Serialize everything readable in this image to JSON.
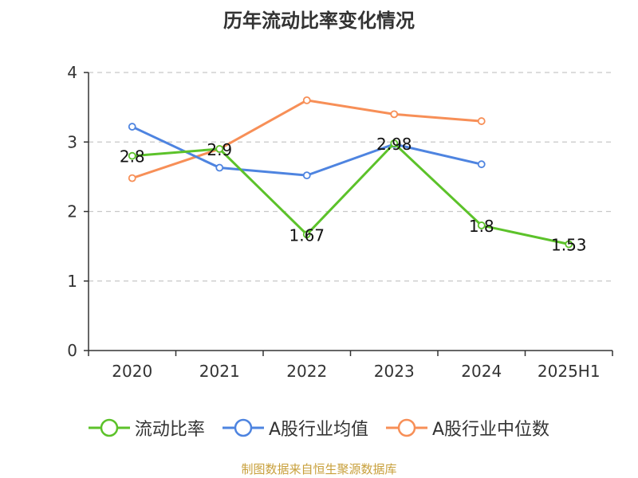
{
  "title": "历年流动比率变化情况",
  "source": "制图数据来自恒生聚源数据库",
  "colors": {
    "series_current_ratio": "#5cc22a",
    "series_industry_mean": "#4e84e0",
    "series_industry_median": "#f78f57",
    "grid": "#c8c8c8",
    "axis": "#333333",
    "source_text": "#c8a03c"
  },
  "chart_data": {
    "type": "line",
    "title": "历年流动比率变化情况",
    "categories": [
      "2020",
      "2021",
      "2022",
      "2023",
      "2024",
      "2025H1"
    ],
    "ylim": [
      0,
      4
    ],
    "yticks": [
      "0",
      "1",
      "2",
      "3",
      "4"
    ],
    "grid": true,
    "legend_position": "bottom",
    "series": [
      {
        "name": "流动比率",
        "color": "#5cc22a",
        "values": [
          2.8,
          2.9,
          1.67,
          2.98,
          1.8,
          1.53
        ],
        "labels": [
          "2.8",
          "2.9",
          "1.67",
          "2.98",
          "1.8",
          "1.53"
        ]
      },
      {
        "name": "A股行业均值",
        "color": "#4e84e0",
        "values": [
          3.22,
          2.63,
          2.52,
          2.97,
          2.68,
          null
        ]
      },
      {
        "name": "A股行业中位数",
        "color": "#f78f57",
        "values": [
          2.48,
          2.9,
          3.6,
          3.4,
          3.3,
          null
        ]
      }
    ]
  }
}
